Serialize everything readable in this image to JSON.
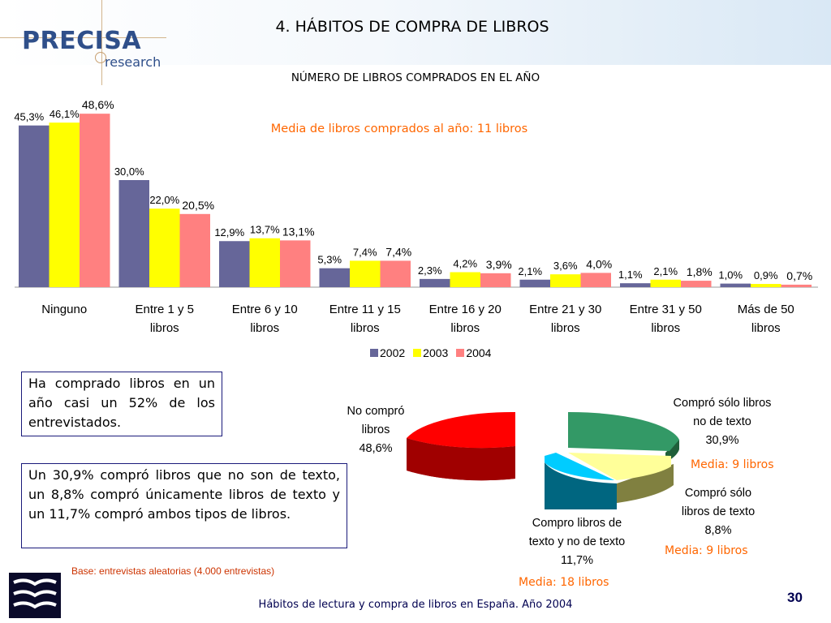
{
  "header": {
    "logo_text": "PRECISA",
    "logo_sub": "research",
    "title": "4. HÁBITOS DE COMPRA DE LIBROS"
  },
  "chart_data": [
    {
      "type": "bar",
      "title": "NÚMERO DE LIBROS COMPRADOS EN EL AÑO",
      "annotation": "Media de libros comprados al año: 11 libros",
      "categories": [
        [
          "Ninguno"
        ],
        [
          "Entre 1 y 5",
          "libros"
        ],
        [
          "Entre 6 y 10",
          "libros"
        ],
        [
          "Entre 11 y 15",
          "libros"
        ],
        [
          "Entre 16 y 20",
          "libros"
        ],
        [
          "Entre 21 y 30",
          "libros"
        ],
        [
          "Entre 31 y 50",
          "libros"
        ],
        [
          "Más de 50",
          "libros"
        ]
      ],
      "series": [
        {
          "name": "2002",
          "color": "#666699",
          "values": [
            45.3,
            30.0,
            12.9,
            5.3,
            2.3,
            2.1,
            1.1,
            1.0
          ],
          "labels": [
            "45,3%",
            "30,0%",
            "12,9%",
            "5,3%",
            "2,3%",
            "2,1%",
            "1,1%",
            "1,0%"
          ]
        },
        {
          "name": "2003",
          "color": "#ffff00",
          "values": [
            46.1,
            22.0,
            13.7,
            7.4,
            4.2,
            3.6,
            2.1,
            0.9
          ],
          "labels": [
            "46,1%",
            "22,0%",
            "13,7%",
            "7,4%",
            "4,2%",
            "3,6%",
            "2,1%",
            "0,9%"
          ]
        },
        {
          "name": "2004",
          "color": "#ff8080",
          "values": [
            48.6,
            20.5,
            13.1,
            7.4,
            3.9,
            4.0,
            1.8,
            0.7
          ],
          "labels": [
            "48,6%",
            "20,5%",
            "13,1%",
            "7,4%",
            "3,9%",
            "4,0%",
            "1,8%",
            "0,7%"
          ]
        }
      ],
      "legend": "bottom",
      "grid": false
    },
    {
      "type": "pie",
      "slices": [
        {
          "label": [
            "No compró",
            "libros",
            "48,6%"
          ],
          "value": 48.6,
          "color": "#ff0000"
        },
        {
          "label": [
            "Compró sólo libros",
            "no de texto",
            "30,9%"
          ],
          "value": 30.9,
          "color": "#339966",
          "media": "Media: 9 libros"
        },
        {
          "label": [
            "Compró sólo",
            "libros de texto",
            "8,8%"
          ],
          "value": 8.8,
          "color": "#ffff99",
          "media": "Media: 9 libros"
        },
        {
          "label": [
            "Compro libros de",
            "texto y no de texto",
            "11,7%"
          ],
          "value": 11.7,
          "color": "#00ccff",
          "media": "Media: 18 libros"
        }
      ]
    }
  ],
  "boxes": {
    "box1": "Ha comprado libros en un año casi un 52% de los entrevistados.",
    "box2": "Un 30,9% compró libros que no son de texto, un 8,8% compró únicamente libros de texto y un 11,7% compró ambos tipos de libros."
  },
  "base_note": "Base: entrevistas aleatorias (4.000 entrevistas)",
  "footer": "Hábitos de lectura y compra de libros en España. Año 2004",
  "page_number": "30"
}
